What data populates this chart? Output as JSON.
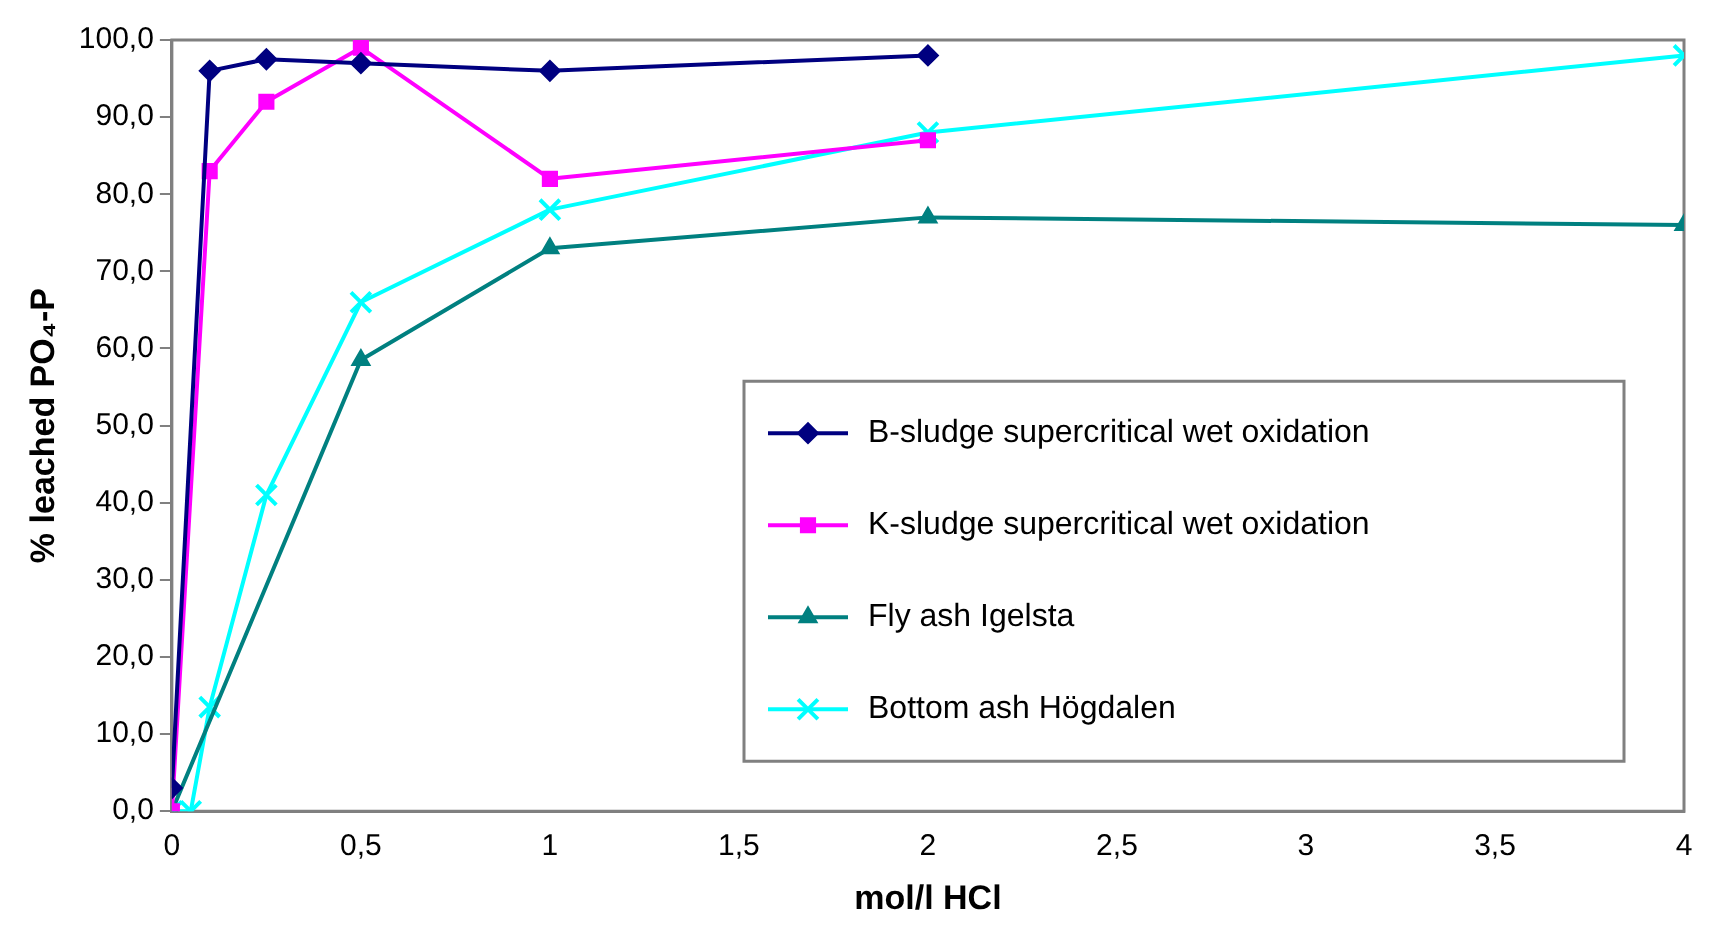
{
  "chart_data": {
    "type": "line",
    "xlabel": "mol/l HCl",
    "ylabel": "% leached PO₄-P",
    "xlim": [
      0,
      4
    ],
    "xticks": [
      0,
      {
        "value": 0.5,
        "label": "0,5"
      },
      1,
      {
        "value": 1.5,
        "label": "1,5"
      },
      2,
      {
        "value": 2.5,
        "label": "2,5"
      },
      3,
      {
        "value": 3.5,
        "label": "3,5"
      },
      4
    ],
    "ylim": [
      0,
      100
    ],
    "yticks": [
      {
        "value": 0,
        "label": "0,0"
      },
      {
        "value": 10,
        "label": "10,0"
      },
      {
        "value": 20,
        "label": "20,0"
      },
      {
        "value": 30,
        "label": "30,0"
      },
      {
        "value": 40,
        "label": "40,0"
      },
      {
        "value": 50,
        "label": "50,0"
      },
      {
        "value": 60,
        "label": "60,0"
      },
      {
        "value": 70,
        "label": "70,0"
      },
      {
        "value": 80,
        "label": "80,0"
      },
      {
        "value": 90,
        "label": "90,0"
      },
      {
        "value": 100,
        "label": "100,0"
      }
    ],
    "grid": false,
    "legend": "bottom right",
    "line_style": "solid",
    "series": [
      {
        "name": "B-sludge supercritical wet oxidation",
        "color": "#000080",
        "marker": "diamond",
        "x": [
          0,
          0.1,
          0.25,
          0.5,
          1,
          2
        ],
        "values": [
          3,
          96,
          97.5,
          97,
          96,
          98
        ]
      },
      {
        "name": "K-sludge supercritical wet oxidation",
        "color": "#ff00ff",
        "marker": "square",
        "x": [
          0,
          0.1,
          0.25,
          0.5,
          1,
          2
        ],
        "values": [
          0,
          83,
          92,
          99,
          82,
          87
        ]
      },
      {
        "name": "Fly ash Igelsta",
        "color": "#008080",
        "marker": "triangle",
        "x": [
          0,
          0.5,
          1,
          2,
          4
        ],
        "values": [
          0,
          58.5,
          73,
          77,
          76
        ]
      },
      {
        "name": "Bottom ash Högdalen",
        "color": "#00ffff",
        "marker": "cross",
        "x": [
          0,
          0.05,
          0.1,
          0.25,
          0.5,
          1,
          2,
          4
        ],
        "values": [
          0,
          0,
          13.5,
          41,
          66,
          78,
          88,
          98
        ]
      }
    ]
  }
}
